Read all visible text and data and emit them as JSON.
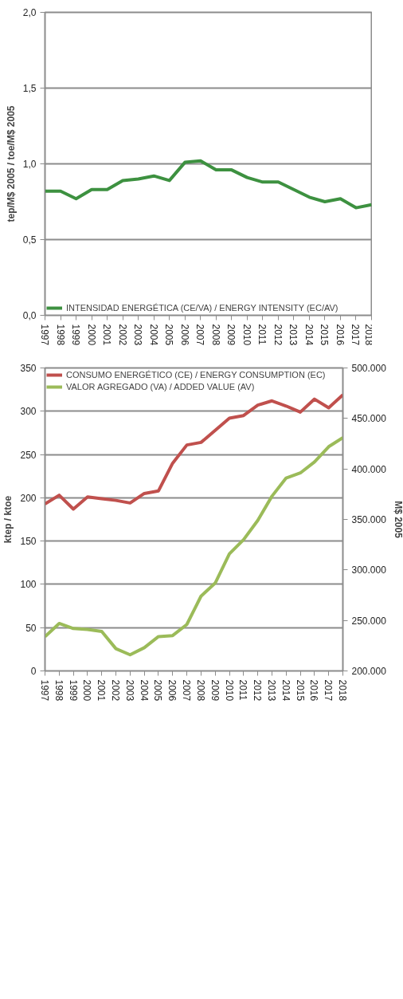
{
  "chart_data": [
    {
      "type": "line",
      "ylabel": "tep/M$ 2005 / toe/M$ 2005",
      "x": [
        1997,
        1998,
        1999,
        2000,
        2001,
        2002,
        2003,
        2004,
        2005,
        2006,
        2007,
        2008,
        2009,
        2010,
        2011,
        2012,
        2013,
        2014,
        2015,
        2016,
        2017,
        2018
      ],
      "xlim": [
        1997,
        2018
      ],
      "xticks": [
        1997,
        1998,
        1999,
        2000,
        2001,
        2002,
        2003,
        2004,
        2005,
        2006,
        2007,
        2008,
        2009,
        2010,
        2011,
        2012,
        2013,
        2014,
        2015,
        2016,
        2017,
        2018
      ],
      "ylim": [
        0,
        2
      ],
      "yticks": [
        {
          "value": 0,
          "label": "0,0"
        },
        {
          "value": 0.5,
          "label": "0,5"
        },
        {
          "value": 1,
          "label": "1,0"
        },
        {
          "value": 1.5,
          "label": "1,5"
        },
        {
          "value": 2,
          "label": "2,0"
        }
      ],
      "grid": "y",
      "legend": "bottom left",
      "line_style": "solid",
      "series": [
        {
          "name": "INTENSIDAD ENERGÉTICA (CE/VA) / ENERGY INTENSITY (EC/AV)",
          "color": "#3d9140",
          "values": [
            0.82,
            0.82,
            0.77,
            0.83,
            0.83,
            0.89,
            0.9,
            0.92,
            0.89,
            1.01,
            1.02,
            0.96,
            0.96,
            0.91,
            0.88,
            0.88,
            0.83,
            0.78,
            0.75,
            0.77,
            0.71,
            0.73
          ]
        }
      ]
    },
    {
      "type": "line",
      "ylabel": "ktep / ktoe",
      "y2label": "M$ 2005",
      "x": [
        1997,
        1998,
        1999,
        2000,
        2001,
        2002,
        2003,
        2004,
        2005,
        2006,
        2007,
        2008,
        2009,
        2010,
        2011,
        2012,
        2013,
        2014,
        2015,
        2016,
        2017,
        2018
      ],
      "xlim": [
        1997,
        2018
      ],
      "xticks": [
        1997,
        1998,
        1999,
        2000,
        2001,
        2002,
        2003,
        2004,
        2005,
        2006,
        2007,
        2008,
        2009,
        2010,
        2011,
        2012,
        2013,
        2014,
        2015,
        2016,
        2017,
        2018
      ],
      "ylim": [
        0,
        350
      ],
      "yticks": [
        0,
        50,
        100,
        150,
        200,
        250,
        300,
        350
      ],
      "y2lim": [
        200000,
        500000
      ],
      "y2ticks": [
        {
          "value": 200000,
          "label": "200.000"
        },
        {
          "value": 250000,
          "label": "250.000"
        },
        {
          "value": 300000,
          "label": "300.000"
        },
        {
          "value": 350000,
          "label": "350.000"
        },
        {
          "value": 400000,
          "label": "400.000"
        },
        {
          "value": 450000,
          "label": "450.000"
        },
        {
          "value": 500000,
          "label": "500.000"
        }
      ],
      "grid": "y",
      "legend": "top left",
      "line_style": "solid",
      "series": [
        {
          "name": "CONSUMO ENERGÉTICO (CE) / ENERGY CONSUMPTION (EC)",
          "color": "#c0504d",
          "values": [
            193,
            203,
            187,
            201,
            199,
            197,
            194,
            205,
            208,
            240,
            261,
            264,
            278,
            292,
            295,
            307,
            312,
            306,
            299,
            314,
            304,
            319
          ]
        },
        {
          "name": "VALOR AGREGADO (VA) / ADDED VALUE (AV)",
          "color": "#9bbb59",
          "axis": "y2",
          "values": [
            234000,
            247000,
            242000,
            241000,
            239000,
            222000,
            216000,
            223000,
            234000,
            235000,
            246000,
            274000,
            287000,
            316000,
            330000,
            349000,
            373000,
            391000,
            396000,
            407000,
            422000,
            431000
          ]
        }
      ]
    }
  ]
}
